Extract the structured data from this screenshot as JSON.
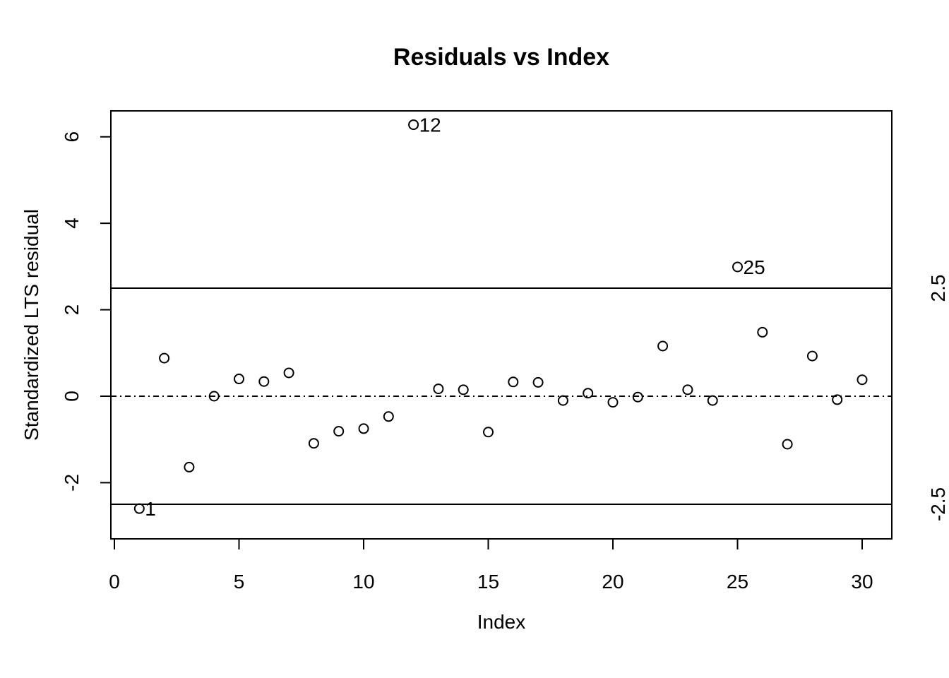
{
  "chart_data": {
    "type": "scatter",
    "title": "Residuals vs Index",
    "xlabel": "Index",
    "ylabel": "Standardized LTS residual",
    "xlim": [
      0,
      30
    ],
    "ylim": [
      -3.3,
      6.6
    ],
    "x_ticks": [
      "0",
      "5",
      "10",
      "15",
      "20",
      "25",
      "30"
    ],
    "y_ticks": [
      "-2",
      "0",
      "2",
      "4",
      "6"
    ],
    "grid": false,
    "reference_lines": [
      {
        "y": 2.5,
        "style": "solid",
        "label": "2.5"
      },
      {
        "y": -2.5,
        "style": "solid",
        "label": "-2.5"
      },
      {
        "y": 0,
        "style": "dash-dot"
      }
    ],
    "series": [
      {
        "x": [
          1,
          2,
          3,
          4,
          5,
          6,
          7,
          8,
          9,
          10,
          11,
          12,
          13,
          14,
          15,
          16,
          17,
          18,
          19,
          20,
          21,
          22,
          23,
          24,
          25,
          26,
          27,
          28,
          29,
          30
        ],
        "y": [
          -2.6,
          0.88,
          -1.64,
          0.0,
          0.4,
          0.34,
          0.54,
          -1.09,
          -0.81,
          -0.75,
          -0.47,
          6.28,
          0.17,
          0.15,
          -0.83,
          0.33,
          0.32,
          -0.1,
          0.07,
          -0.14,
          -0.02,
          1.16,
          0.15,
          -0.1,
          2.99,
          1.48,
          -1.11,
          0.93,
          -0.08,
          0.38
        ]
      }
    ],
    "labeled_points": [
      {
        "x": 1,
        "text": "1"
      },
      {
        "x": 12,
        "text": "12"
      },
      {
        "x": 25,
        "text": "25"
      }
    ]
  }
}
